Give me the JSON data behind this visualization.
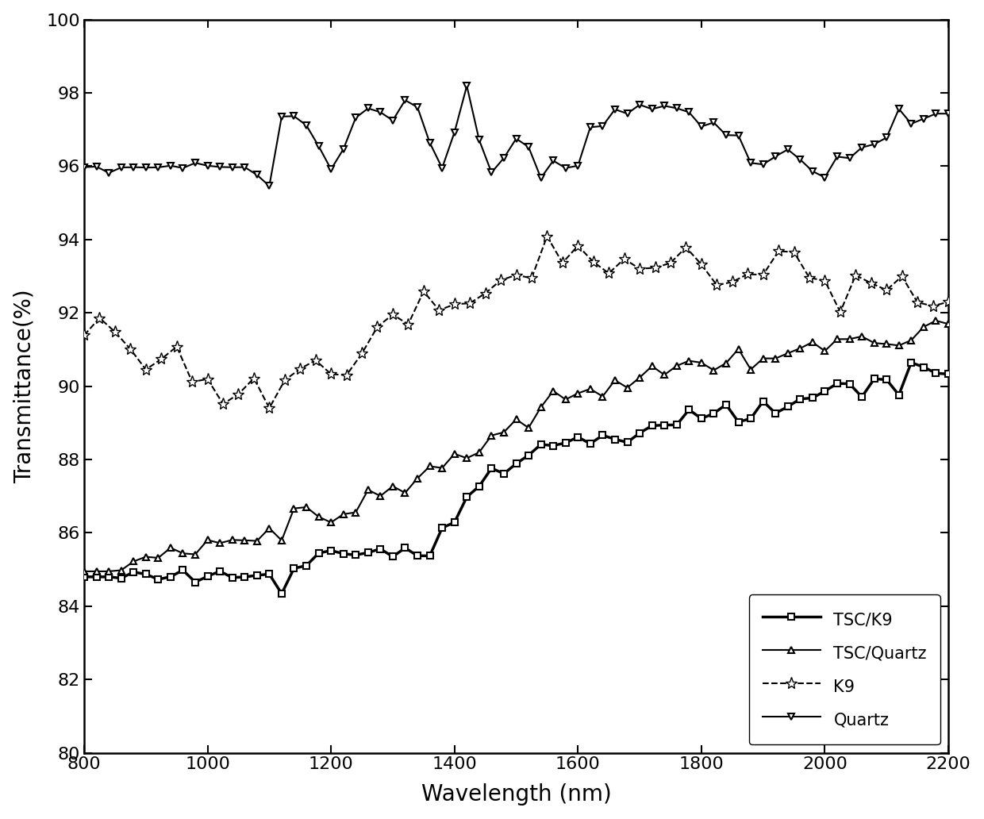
{
  "title": "",
  "xlabel": "Wavelength (nm)",
  "ylabel": "Transmittance(%)",
  "xlim": [
    800,
    2200
  ],
  "ylim": [
    80,
    100
  ],
  "xticks": [
    800,
    1000,
    1200,
    1400,
    1600,
    1800,
    2000,
    2200
  ],
  "yticks": [
    80,
    82,
    84,
    86,
    88,
    90,
    92,
    94,
    96,
    98,
    100
  ],
  "color": "black",
  "legend_loc": "lower right",
  "series": [
    {
      "label": "TSC/K9",
      "marker": "s",
      "linestyle": "-",
      "markersize": 5
    },
    {
      "label": "TSC/Quartz",
      "marker": "^",
      "linestyle": "-",
      "markersize": 5
    },
    {
      "label": "K9",
      "marker": "*",
      "linestyle": "--",
      "markersize": 10
    },
    {
      "label": "Quartz",
      "marker": "v",
      "linestyle": "-",
      "markersize": 5
    }
  ]
}
